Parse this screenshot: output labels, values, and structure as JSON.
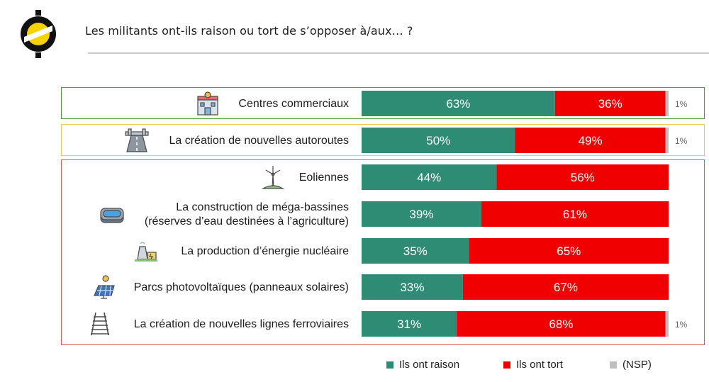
{
  "title": "Les militants ont-ils raison ou tort de s’opposer à/aux… ?",
  "colors": {
    "raison": "#2e8b74",
    "tort": "#f00000",
    "nsp": "#bfbfbf",
    "group_commerce": "#4c9a3a",
    "group_autoroutes": "#f2c94c",
    "group_energie": "#e05a5a"
  },
  "legend": {
    "raison": "Ils ont raison",
    "tort": "Ils ont tort",
    "nsp": "(NSP)"
  },
  "chart_data": {
    "type": "bar",
    "orientation": "horizontal",
    "stacked": true,
    "title": "Les militants ont-ils raison ou tort de s’opposer à/aux… ?",
    "xlim": [
      0,
      100
    ],
    "grid": false,
    "legend_position": "bottom",
    "categories": [
      {
        "label": "Centres commerciaux",
        "icon": "shopping-mall-icon"
      },
      {
        "label": "La création de nouvelles autoroutes",
        "icon": "highway-icon"
      },
      {
        "label": "Eoliennes",
        "icon": "wind-turbine-icon"
      },
      {
        "label": "La construction de méga-bassines\n(réserves d’eau destinées à l’agriculture)",
        "icon": "water-basin-icon"
      },
      {
        "label": "La production d’énergie nucléaire",
        "icon": "nuclear-plant-icon"
      },
      {
        "label": "Parcs photovoltaïques (panneaux solaires)",
        "icon": "solar-panel-icon"
      },
      {
        "label": "La création de nouvelles lignes ferroviaires",
        "icon": "railway-icon"
      }
    ],
    "series": [
      {
        "name": "Ils ont raison",
        "values": [
          63,
          50,
          44,
          39,
          35,
          33,
          31
        ],
        "labels": [
          "63%",
          "50%",
          "44%",
          "39%",
          "35%",
          "33%",
          "31%"
        ]
      },
      {
        "name": "Ils ont tort",
        "values": [
          36,
          49,
          56,
          61,
          65,
          67,
          68
        ],
        "labels": [
          "36%",
          "49%",
          "56%",
          "61%",
          "65%",
          "67%",
          "68%"
        ]
      },
      {
        "name": "(NSP)",
        "values": [
          1,
          1,
          0,
          0,
          0,
          0,
          1
        ],
        "labels": [
          "1%",
          "1%",
          "",
          "",
          "",
          "",
          "1%"
        ]
      }
    ]
  }
}
